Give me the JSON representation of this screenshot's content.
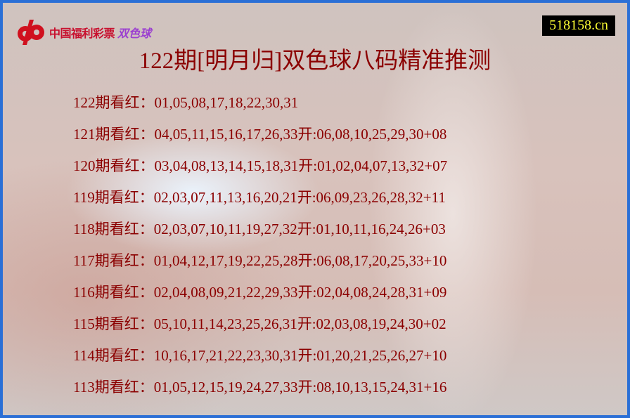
{
  "header": {
    "logo_text": "中国福利彩票",
    "logo_text_accent": "双色球",
    "site": "518158.cn",
    "title": "122期[明月归]双色球八码精准推测"
  },
  "colors": {
    "text": "#8b0000",
    "border": "#2a6fd6",
    "site_bg": "#000000",
    "site_text": "#ffff33"
  },
  "rows": [
    "122期看红：01,05,08,17,18,22,30,31",
    "121期看红：04,05,11,15,16,17,26,33开:06,08,10,25,29,30+08",
    "120期看红：03,04,08,13,14,15,18,31开:01,02,04,07,13,32+07",
    "119期看红：02,03,07,11,13,16,20,21开:06,09,23,26,28,32+11",
    "118期看红：02,03,07,10,11,19,27,32开:01,10,11,16,24,26+03",
    "117期看红：01,04,12,17,19,22,25,28开:06,08,17,20,25,33+10",
    "116期看红：02,04,08,09,21,22,29,33开:02,04,08,24,28,31+09",
    "115期看红：05,10,11,14,23,25,26,31开:02,03,08,19,24,30+02",
    "114期看红：10,16,17,21,22,23,30,31开:01,20,21,25,26,27+10",
    "113期看红：01,05,12,15,19,24,27,33开:08,10,13,15,24,31+16"
  ]
}
